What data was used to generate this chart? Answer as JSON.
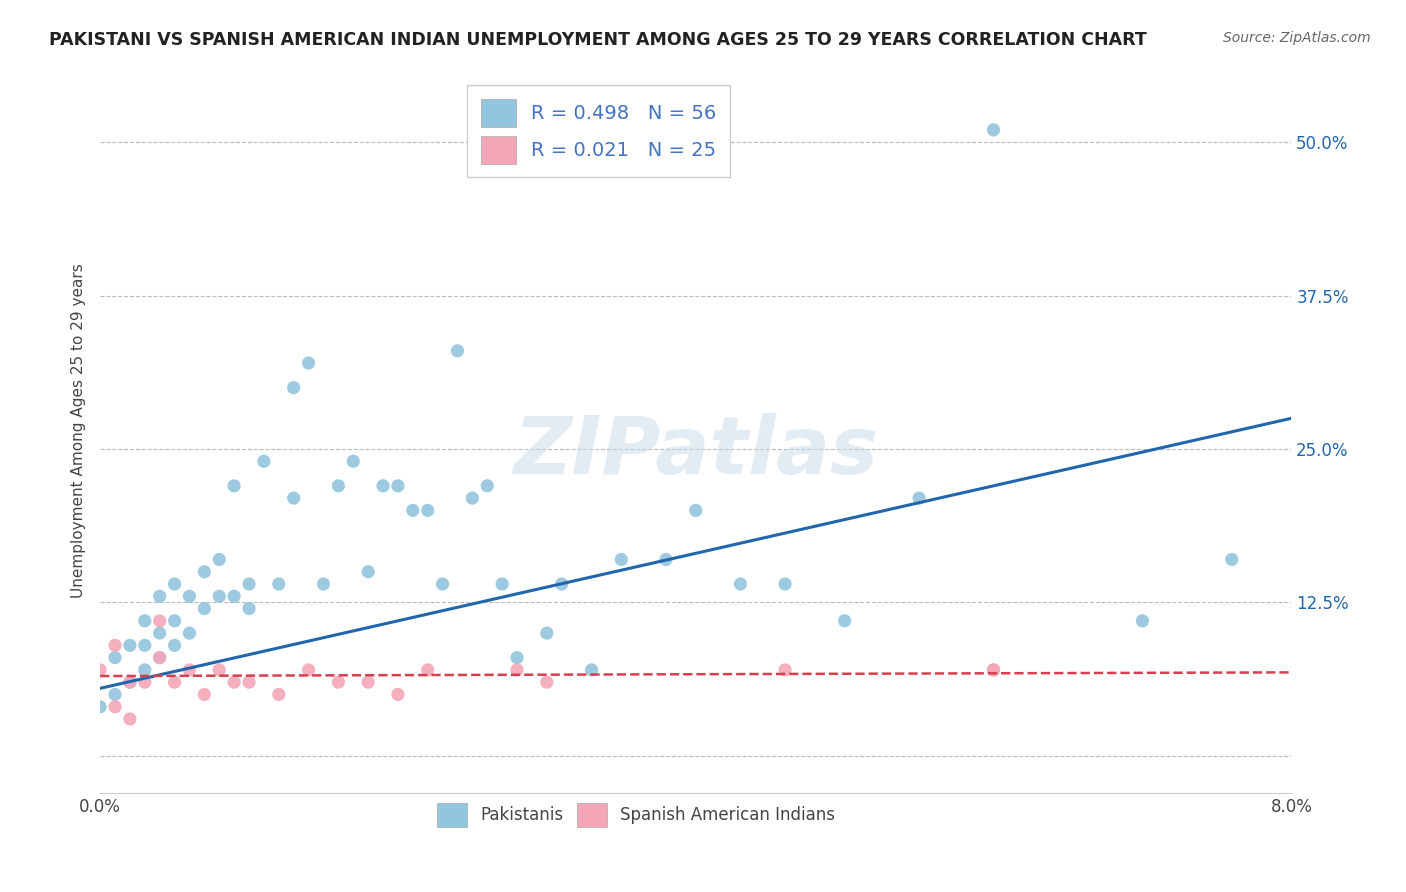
{
  "title": "PAKISTANI VS SPANISH AMERICAN INDIAN UNEMPLOYMENT AMONG AGES 25 TO 29 YEARS CORRELATION CHART",
  "source": "Source: ZipAtlas.com",
  "ylabel": "Unemployment Among Ages 25 to 29 years",
  "xlim": [
    0.0,
    0.08
  ],
  "ylim": [
    -0.03,
    0.56
  ],
  "xticks": [
    0.0,
    0.01,
    0.02,
    0.03,
    0.04,
    0.05,
    0.06,
    0.07,
    0.08
  ],
  "xticklabels": [
    "0.0%",
    "",
    "",
    "",
    "",
    "",
    "",
    "",
    "8.0%"
  ],
  "ytick_positions": [
    0.0,
    0.125,
    0.25,
    0.375,
    0.5
  ],
  "ytick_labels": [
    "",
    "12.5%",
    "25.0%",
    "37.5%",
    "50.0%"
  ],
  "blue_R": 0.498,
  "blue_N": 56,
  "pink_R": 0.021,
  "pink_N": 25,
  "blue_color": "#92c5de",
  "pink_color": "#f4a6b8",
  "blue_line_color": "#2166ac",
  "pink_line_color": "#d6404e",
  "legend_R_color": "#4472c4",
  "legend_N_color": "#4472c4",
  "watermark": "ZIPatlas",
  "blue_scatter_x": [
    0.0,
    0.001,
    0.001,
    0.002,
    0.002,
    0.003,
    0.003,
    0.003,
    0.004,
    0.004,
    0.004,
    0.005,
    0.005,
    0.005,
    0.006,
    0.006,
    0.007,
    0.007,
    0.008,
    0.008,
    0.009,
    0.009,
    0.01,
    0.01,
    0.011,
    0.012,
    0.013,
    0.013,
    0.014,
    0.015,
    0.016,
    0.017,
    0.018,
    0.019,
    0.02,
    0.021,
    0.022,
    0.023,
    0.024,
    0.025,
    0.026,
    0.027,
    0.028,
    0.03,
    0.031,
    0.033,
    0.035,
    0.038,
    0.04,
    0.043,
    0.046,
    0.05,
    0.055,
    0.06,
    0.07,
    0.076
  ],
  "blue_scatter_y": [
    0.04,
    0.05,
    0.08,
    0.06,
    0.09,
    0.07,
    0.09,
    0.11,
    0.08,
    0.1,
    0.13,
    0.09,
    0.11,
    0.14,
    0.1,
    0.13,
    0.12,
    0.15,
    0.13,
    0.16,
    0.13,
    0.22,
    0.12,
    0.14,
    0.24,
    0.14,
    0.3,
    0.21,
    0.32,
    0.14,
    0.22,
    0.24,
    0.15,
    0.22,
    0.22,
    0.2,
    0.2,
    0.14,
    0.33,
    0.21,
    0.22,
    0.14,
    0.08,
    0.1,
    0.14,
    0.07,
    0.16,
    0.16,
    0.2,
    0.14,
    0.14,
    0.11,
    0.21,
    0.51,
    0.11,
    0.16
  ],
  "pink_scatter_x": [
    0.0,
    0.001,
    0.001,
    0.002,
    0.002,
    0.003,
    0.004,
    0.004,
    0.005,
    0.006,
    0.007,
    0.008,
    0.009,
    0.01,
    0.012,
    0.014,
    0.016,
    0.018,
    0.02,
    0.022,
    0.028,
    0.03,
    0.046,
    0.06,
    0.06
  ],
  "pink_scatter_y": [
    0.07,
    0.04,
    0.09,
    0.06,
    0.03,
    0.06,
    0.08,
    0.11,
    0.06,
    0.07,
    0.05,
    0.07,
    0.06,
    0.06,
    0.05,
    0.07,
    0.06,
    0.06,
    0.05,
    0.07,
    0.07,
    0.06,
    0.07,
    0.07,
    0.07
  ],
  "blue_line_x": [
    0.0,
    0.08
  ],
  "blue_line_y": [
    0.055,
    0.275
  ],
  "pink_line_x": [
    0.0,
    0.08
  ],
  "pink_line_y": [
    0.065,
    0.068
  ]
}
